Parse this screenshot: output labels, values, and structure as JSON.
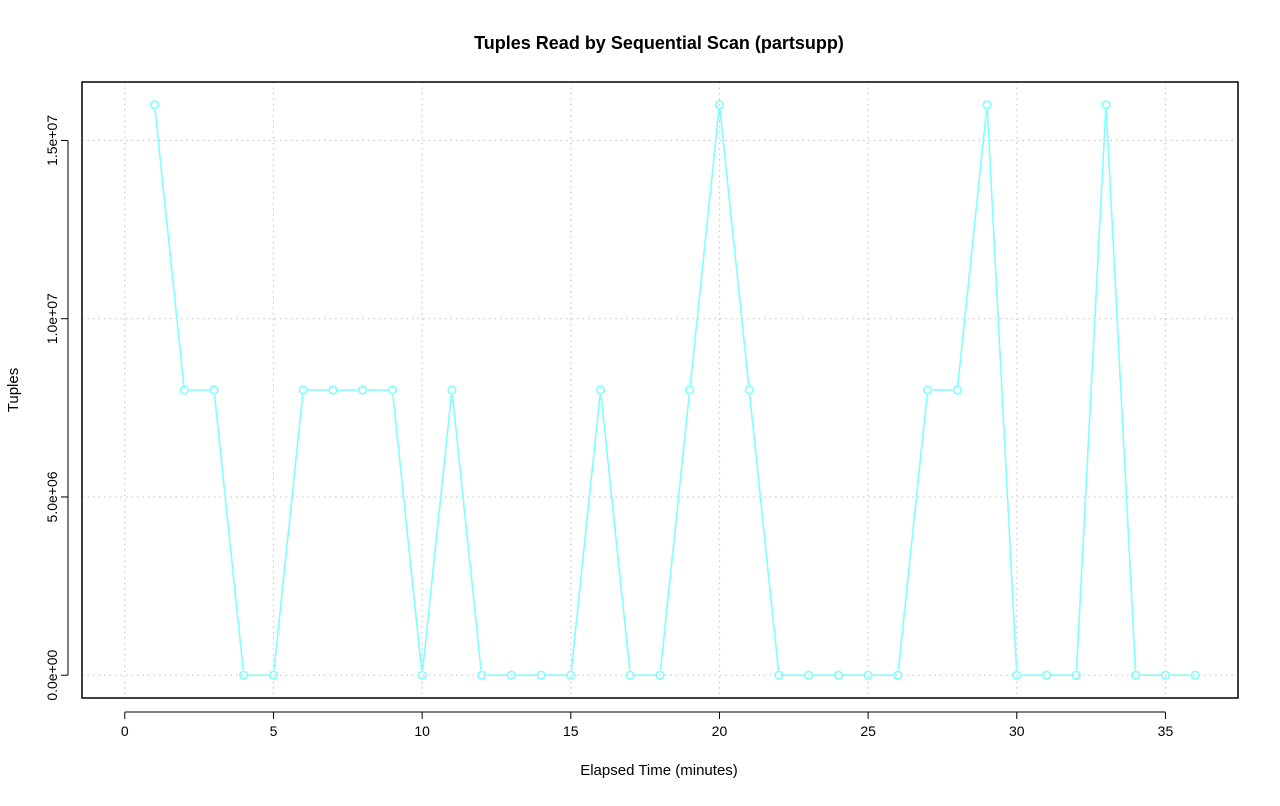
{
  "chart_data": {
    "type": "line",
    "title": "Tuples Read by Sequential Scan (partsupp)",
    "xlabel": "Elapsed Time (minutes)",
    "ylabel": "Tuples",
    "xlim": [
      0,
      36
    ],
    "ylim": [
      0,
      16000000
    ],
    "x_ticks": [
      0,
      5,
      10,
      15,
      20,
      25,
      30,
      35
    ],
    "x_tick_labels": [
      "0",
      "5",
      "10",
      "15",
      "20",
      "25",
      "30",
      "35"
    ],
    "y_ticks": [
      0,
      5000000,
      10000000,
      15000000
    ],
    "y_tick_labels": [
      "0.0e+00",
      "5.0e+06",
      "1.0e+07",
      "1.5e+07"
    ],
    "grid": true,
    "series": [
      {
        "color": "#7fffff",
        "marker": "open-circle",
        "x": [
          1,
          2,
          3,
          4,
          5,
          6,
          7,
          8,
          9,
          10,
          11,
          12,
          13,
          14,
          15,
          16,
          17,
          18,
          19,
          20,
          21,
          22,
          23,
          24,
          25,
          26,
          27,
          28,
          29,
          30,
          31,
          32,
          33,
          34,
          35,
          36
        ],
        "values": [
          16000000,
          8000000,
          8000000,
          0,
          0,
          8000000,
          8000000,
          8000000,
          8000000,
          0,
          8000000,
          0,
          0,
          0,
          0,
          8000000,
          0,
          0,
          8000000,
          16000000,
          8000000,
          0,
          0,
          0,
          0,
          0,
          8000000,
          8000000,
          16000000,
          0,
          0,
          0,
          16000000,
          0,
          0,
          0
        ]
      }
    ]
  }
}
